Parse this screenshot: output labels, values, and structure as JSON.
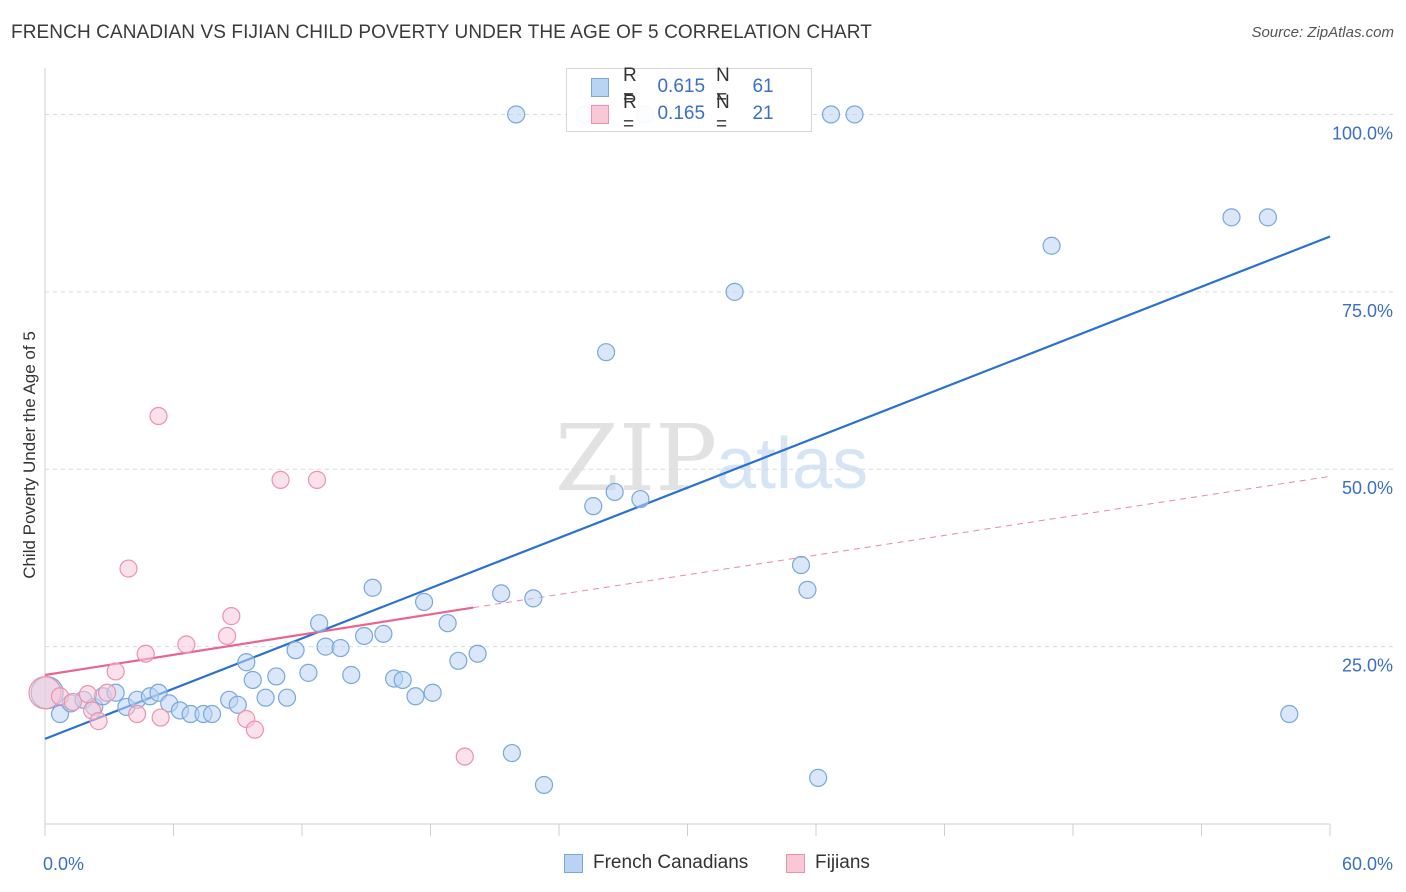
{
  "title": "FRENCH CANADIAN VS FIJIAN CHILD POVERTY UNDER THE AGE OF 5 CORRELATION CHART",
  "source": "Source: ZipAtlas.com",
  "watermark": {
    "zip": "ZIP",
    "atlas": "atlas"
  },
  "colors": {
    "blue_fill": "#b9d4f3",
    "blue_stroke": "#7aa7dc",
    "blue_line": "#2a72d0",
    "pink_fill": "#f8c8d7",
    "pink_stroke": "#ec92ad",
    "pink_line": "#e8668e",
    "tick_text": "#3a6fc4",
    "grid": "#d9d9d9"
  },
  "stats": [
    {
      "r_label": "R =",
      "r_value": "0.615",
      "n_label": "N =",
      "n_value": "61",
      "series": "French Canadians"
    },
    {
      "r_label": "R =",
      "r_value": "0.165",
      "n_label": "N =",
      "n_value": "21",
      "series": "Fijians"
    }
  ],
  "legend": [
    {
      "label": "French Canadians",
      "color": "blue"
    },
    {
      "label": "Fijians",
      "color": "pink"
    }
  ],
  "chart_data": {
    "type": "scatter",
    "title": "FRENCH CANADIAN VS FIJIAN CHILD POVERTY UNDER THE AGE OF 5 CORRELATION CHART",
    "xlabel": "",
    "ylabel": "Child Poverty Under the Age of 5",
    "xlim": [
      0,
      60
    ],
    "ylim": [
      0,
      105
    ],
    "x_tick_labels": [
      "0.0%",
      "60.0%"
    ],
    "y_ticks": [
      25,
      50,
      75,
      100
    ],
    "y_tick_labels": [
      "25.0%",
      "50.0%",
      "75.0%",
      "100.0%"
    ],
    "grid": "horizontal dashed",
    "legend_position": "bottom-center",
    "series": [
      {
        "name": "French Canadians",
        "color": "#b9d4f3",
        "points": [
          [
            0.1,
            18.5
          ],
          [
            0.7,
            15.5
          ],
          [
            1.2,
            17.0
          ],
          [
            1.8,
            17.5
          ],
          [
            2.3,
            16.5
          ],
          [
            2.7,
            18.0
          ],
          [
            3.3,
            18.5
          ],
          [
            3.8,
            16.5
          ],
          [
            4.3,
            17.5
          ],
          [
            4.9,
            18.0
          ],
          [
            5.3,
            18.5
          ],
          [
            5.8,
            17.0
          ],
          [
            6.3,
            16.0
          ],
          [
            6.8,
            15.5
          ],
          [
            7.4,
            15.5
          ],
          [
            7.8,
            15.5
          ],
          [
            8.6,
            17.5
          ],
          [
            9.0,
            16.8
          ],
          [
            9.4,
            22.8
          ],
          [
            9.7,
            20.3
          ],
          [
            10.3,
            17.8
          ],
          [
            10.8,
            20.8
          ],
          [
            11.3,
            17.8
          ],
          [
            11.7,
            24.5
          ],
          [
            12.3,
            21.3
          ],
          [
            12.8,
            28.3
          ],
          [
            13.1,
            25.0
          ],
          [
            13.8,
            24.8
          ],
          [
            14.3,
            21.0
          ],
          [
            14.9,
            26.5
          ],
          [
            15.3,
            33.3
          ],
          [
            15.8,
            26.8
          ],
          [
            16.3,
            20.5
          ],
          [
            16.7,
            20.3
          ],
          [
            17.3,
            18.0
          ],
          [
            17.7,
            31.3
          ],
          [
            18.1,
            18.5
          ],
          [
            18.8,
            28.3
          ],
          [
            19.3,
            23.0
          ],
          [
            20.2,
            24.0
          ],
          [
            21.3,
            32.5
          ],
          [
            21.8,
            10.0
          ],
          [
            22.8,
            31.8
          ],
          [
            22.0,
            100
          ],
          [
            23.3,
            5.5
          ],
          [
            25.2,
            100
          ],
          [
            25.6,
            44.8
          ],
          [
            26.2,
            66.5
          ],
          [
            26.6,
            46.8
          ],
          [
            28.0,
            100
          ],
          [
            27.8,
            45.8
          ],
          [
            32.2,
            75.0
          ],
          [
            35.3,
            36.5
          ],
          [
            35.6,
            33.0
          ],
          [
            36.1,
            6.5
          ],
          [
            36.7,
            100
          ],
          [
            37.8,
            100
          ],
          [
            47.0,
            81.5
          ],
          [
            55.4,
            85.5
          ],
          [
            57.1,
            85.5
          ],
          [
            58.1,
            15.5
          ]
        ],
        "trend": {
          "x": [
            0,
            60
          ],
          "y": [
            12.0,
            82.8
          ]
        }
      },
      {
        "name": "Fijians",
        "color": "#f8c8d7",
        "points": [
          [
            0.0,
            18.5
          ],
          [
            0.7,
            18.0
          ],
          [
            1.3,
            17.2
          ],
          [
            2.0,
            18.3
          ],
          [
            2.2,
            16.0
          ],
          [
            2.5,
            14.5
          ],
          [
            2.9,
            18.5
          ],
          [
            3.3,
            21.5
          ],
          [
            3.9,
            36.0
          ],
          [
            4.3,
            15.5
          ],
          [
            4.7,
            24.0
          ],
          [
            5.3,
            57.5
          ],
          [
            5.4,
            15.0
          ],
          [
            6.6,
            25.3
          ],
          [
            8.5,
            26.5
          ],
          [
            8.7,
            29.3
          ],
          [
            9.4,
            14.8
          ],
          [
            9.8,
            13.3
          ],
          [
            11.0,
            48.5
          ],
          [
            12.7,
            48.5
          ],
          [
            19.6,
            9.5
          ]
        ],
        "trend": {
          "x": [
            0,
            20
          ],
          "y": [
            21.0,
            30.5
          ],
          "extension": {
            "x": [
              20,
              60
            ],
            "y": [
              30.5,
              49.0
            ]
          }
        }
      }
    ]
  }
}
